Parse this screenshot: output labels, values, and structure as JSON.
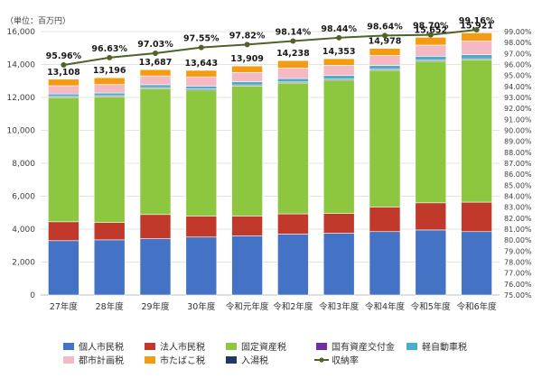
{
  "chart_data": {
    "type": "bar",
    "stacked": true,
    "unit_label": "（単位：百万円）",
    "categories": [
      "27年度",
      "28年度",
      "29年度",
      "30年度",
      "令和元年度",
      "令和2年度",
      "令和3年度",
      "令和4年度",
      "令和5年度",
      "令和6年度"
    ],
    "totals": [
      "13,108",
      "13,196",
      "13,687",
      "13,643",
      "13,909",
      "14,238",
      "14,353",
      "14,978",
      "15,652",
      "15,921"
    ],
    "series": [
      {
        "name": "個人市民税",
        "color": "#4472C4",
        "values": [
          3300,
          3350,
          3420,
          3520,
          3600,
          3700,
          3750,
          3850,
          3950,
          3850
        ]
      },
      {
        "name": "法人市民税",
        "color": "#C0392B",
        "values": [
          1150,
          1050,
          1470,
          1280,
          1200,
          1230,
          1200,
          1500,
          1650,
          1790
        ]
      },
      {
        "name": "固定資産税",
        "color": "#8DC63F",
        "values": [
          7550,
          7650,
          7650,
          7650,
          7900,
          7950,
          8100,
          8300,
          8600,
          8650
        ]
      },
      {
        "name": "国有資産交付金",
        "color": "#7030A0",
        "values": [
          60,
          60,
          60,
          60,
          60,
          60,
          60,
          60,
          60,
          60
        ]
      },
      {
        "name": "軽自動車税",
        "color": "#4BACC6",
        "values": [
          150,
          160,
          170,
          180,
          200,
          210,
          220,
          230,
          240,
          250
        ]
      },
      {
        "name": "都市計画税",
        "color": "#F4B9C2",
        "values": [
          500,
          520,
          540,
          560,
          560,
          640,
          620,
          610,
          680,
          830
        ]
      },
      {
        "name": "市たばこ税",
        "color": "#F39C12",
        "values": [
          398,
          406,
          377,
          393,
          389,
          448,
          403,
          428,
          472,
          491
        ]
      },
      {
        "name": "入湯税",
        "color": "#1F3864",
        "values": [
          0,
          0,
          0,
          0,
          0,
          0,
          0,
          0,
          0,
          0
        ]
      }
    ],
    "line_series": {
      "name": "収納率",
      "color": "#4F6228",
      "values": [
        95.96,
        96.63,
        97.03,
        97.55,
        97.82,
        98.14,
        98.44,
        98.64,
        98.7,
        99.16
      ],
      "labels": [
        "95.96%",
        "96.63%",
        "97.03%",
        "97.55%",
        "97.82%",
        "98.14%",
        "98.44%",
        "98.64%",
        "98.70%",
        "99.16%"
      ]
    },
    "y_ticks": [
      "0",
      "2,000",
      "4,000",
      "6,000",
      "8,000",
      "10,000",
      "12,000",
      "14,000",
      "16,000"
    ],
    "ylim": [
      0,
      16000
    ],
    "y2lim": [
      75,
      99
    ],
    "y2_ticks": [
      "75.00%",
      "76.00%",
      "77.00%",
      "78.00%",
      "79.00%",
      "80.00%",
      "81.00%",
      "82.00%",
      "83.00%",
      "84.00%",
      "85.00%",
      "86.00%",
      "87.00%",
      "88.00%",
      "89.00%",
      "90.00%",
      "91.00%",
      "92.00%",
      "93.00%",
      "94.00%",
      "95.00%",
      "96.00%",
      "97.00%",
      "98.00%",
      "99.00%"
    ],
    "legend": {
      "position": "bottom",
      "items": [
        "個人市民税",
        "法人市民税",
        "固定資産税",
        "国有資産交付金",
        "軽自動車税",
        "都市計画税",
        "市たばこ税",
        "入湯税",
        "収納率"
      ]
    }
  }
}
